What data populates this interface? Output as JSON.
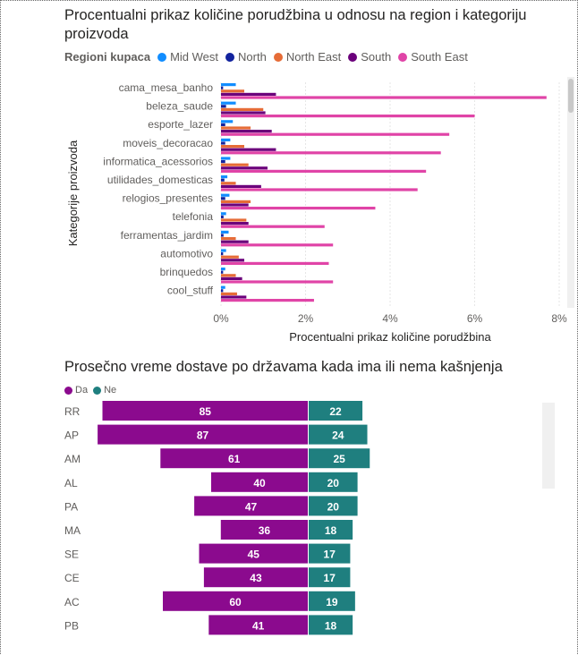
{
  "chart_data": [
    {
      "type": "bar",
      "orientation": "horizontal",
      "title": "Procentualni prikaz količine porudžbina u odnosu na region i kategoriju proizvoda",
      "legend_title": "Regioni kupaca",
      "xlabel": "Procentualni prikaz količine porudžbina",
      "ylabel": "Kategorije proizvoda",
      "xlim": [
        0,
        8
      ],
      "x_ticks": [
        "0%",
        "2%",
        "4%",
        "6%",
        "8%"
      ],
      "legend_position": "top-left",
      "categories": [
        "cama_mesa_banho",
        "beleza_saude",
        "esporte_lazer",
        "moveis_decoracao",
        "informatica_acessorios",
        "utilidades_domesticas",
        "relogios_presentes",
        "telefonia",
        "ferramentas_jardim",
        "automotivo",
        "brinquedos",
        "cool_stuff"
      ],
      "series": [
        {
          "name": "Mid West",
          "color": "#118DFF",
          "values": [
            0.35,
            0.35,
            0.28,
            0.22,
            0.22,
            0.15,
            0.2,
            0.12,
            0.18,
            0.12,
            0.1,
            0.1
          ]
        },
        {
          "name": "North",
          "color": "#12239E",
          "values": [
            0.05,
            0.12,
            0.1,
            0.1,
            0.1,
            0.08,
            0.1,
            0.06,
            0.06,
            0.05,
            0.05,
            0.05
          ]
        },
        {
          "name": "North East",
          "color": "#E66C37",
          "values": [
            0.55,
            1.0,
            0.7,
            0.55,
            0.65,
            0.35,
            0.7,
            0.6,
            0.35,
            0.42,
            0.35,
            0.38
          ]
        },
        {
          "name": "South",
          "color": "#6B007B",
          "values": [
            1.3,
            1.05,
            1.2,
            1.3,
            1.1,
            0.95,
            0.65,
            0.65,
            0.65,
            0.55,
            0.5,
            0.6
          ]
        },
        {
          "name": "South East",
          "color": "#E044A7",
          "values": [
            7.7,
            6.0,
            5.4,
            5.2,
            4.85,
            4.65,
            3.65,
            2.45,
            2.65,
            2.55,
            2.65,
            2.2
          ]
        }
      ]
    },
    {
      "type": "bar",
      "orientation": "horizontal-diverging",
      "title": "Prosečno vreme dostave po državama kada ima ili nema kašnjenja",
      "legend_position": "top-left",
      "categories": [
        "RR",
        "AP",
        "AM",
        "AL",
        "PA",
        "MA",
        "SE",
        "CE",
        "AC",
        "PB"
      ],
      "series": [
        {
          "name": "Da",
          "color": "#8B0A8E",
          "values": [
            85,
            87,
            61,
            40,
            47,
            36,
            45,
            43,
            60,
            41
          ]
        },
        {
          "name": "Ne",
          "color": "#1F7F7F",
          "values": [
            22,
            24,
            25,
            20,
            20,
            18,
            17,
            17,
            19,
            18
          ]
        }
      ]
    }
  ]
}
